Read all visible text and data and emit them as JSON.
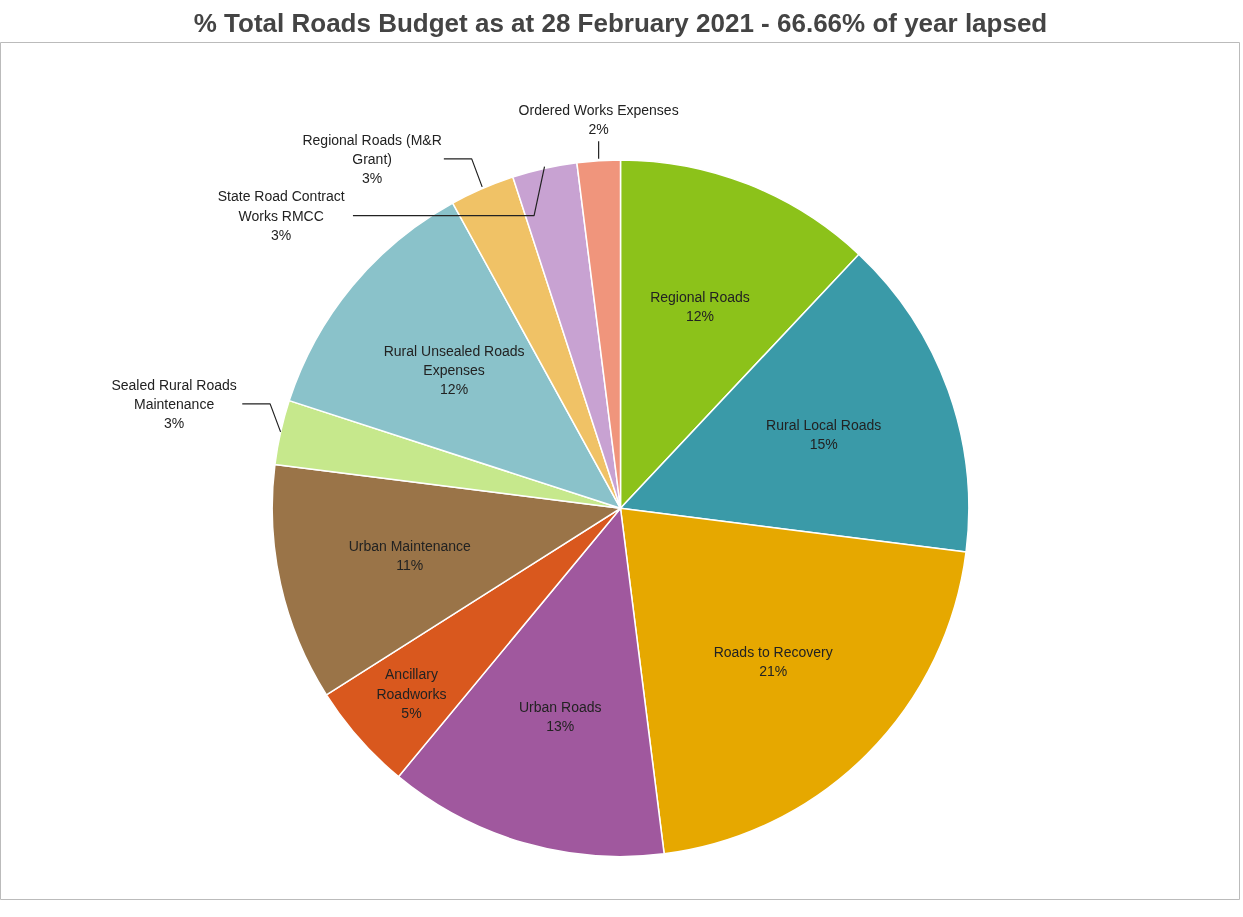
{
  "chart_data": {
    "type": "pie",
    "title": "% Total Roads Budget as at 28 February 2021 - 66.66% of year lapsed",
    "categories": [
      "Regional Roads",
      "Rural Local Roads",
      "Roads to Recovery",
      "Urban Roads",
      "Ancillary Roadworks",
      "Urban Maintenance",
      "Sealed Rural Roads Maintenance",
      "Rural Unsealed Roads Expenses",
      "Regional Roads (M&R Grant)",
      "State Road Contract Works RMCC",
      "Ordered Works Expenses"
    ],
    "values": [
      12,
      15,
      21,
      13,
      5,
      11,
      3,
      12,
      3,
      3,
      2
    ],
    "value_labels": [
      "12%",
      "15%",
      "21%",
      "13%",
      "5%",
      "11%",
      "3%",
      "12%",
      "3%",
      "3%",
      "2%"
    ],
    "colors": [
      "#8cc21a",
      "#3a9aa8",
      "#e6a800",
      "#a0589e",
      "#d9581e",
      "#9a7448",
      "#c6e88c",
      "#8ac2ca",
      "#f0c266",
      "#c8a2d2",
      "#f0957c"
    ]
  }
}
